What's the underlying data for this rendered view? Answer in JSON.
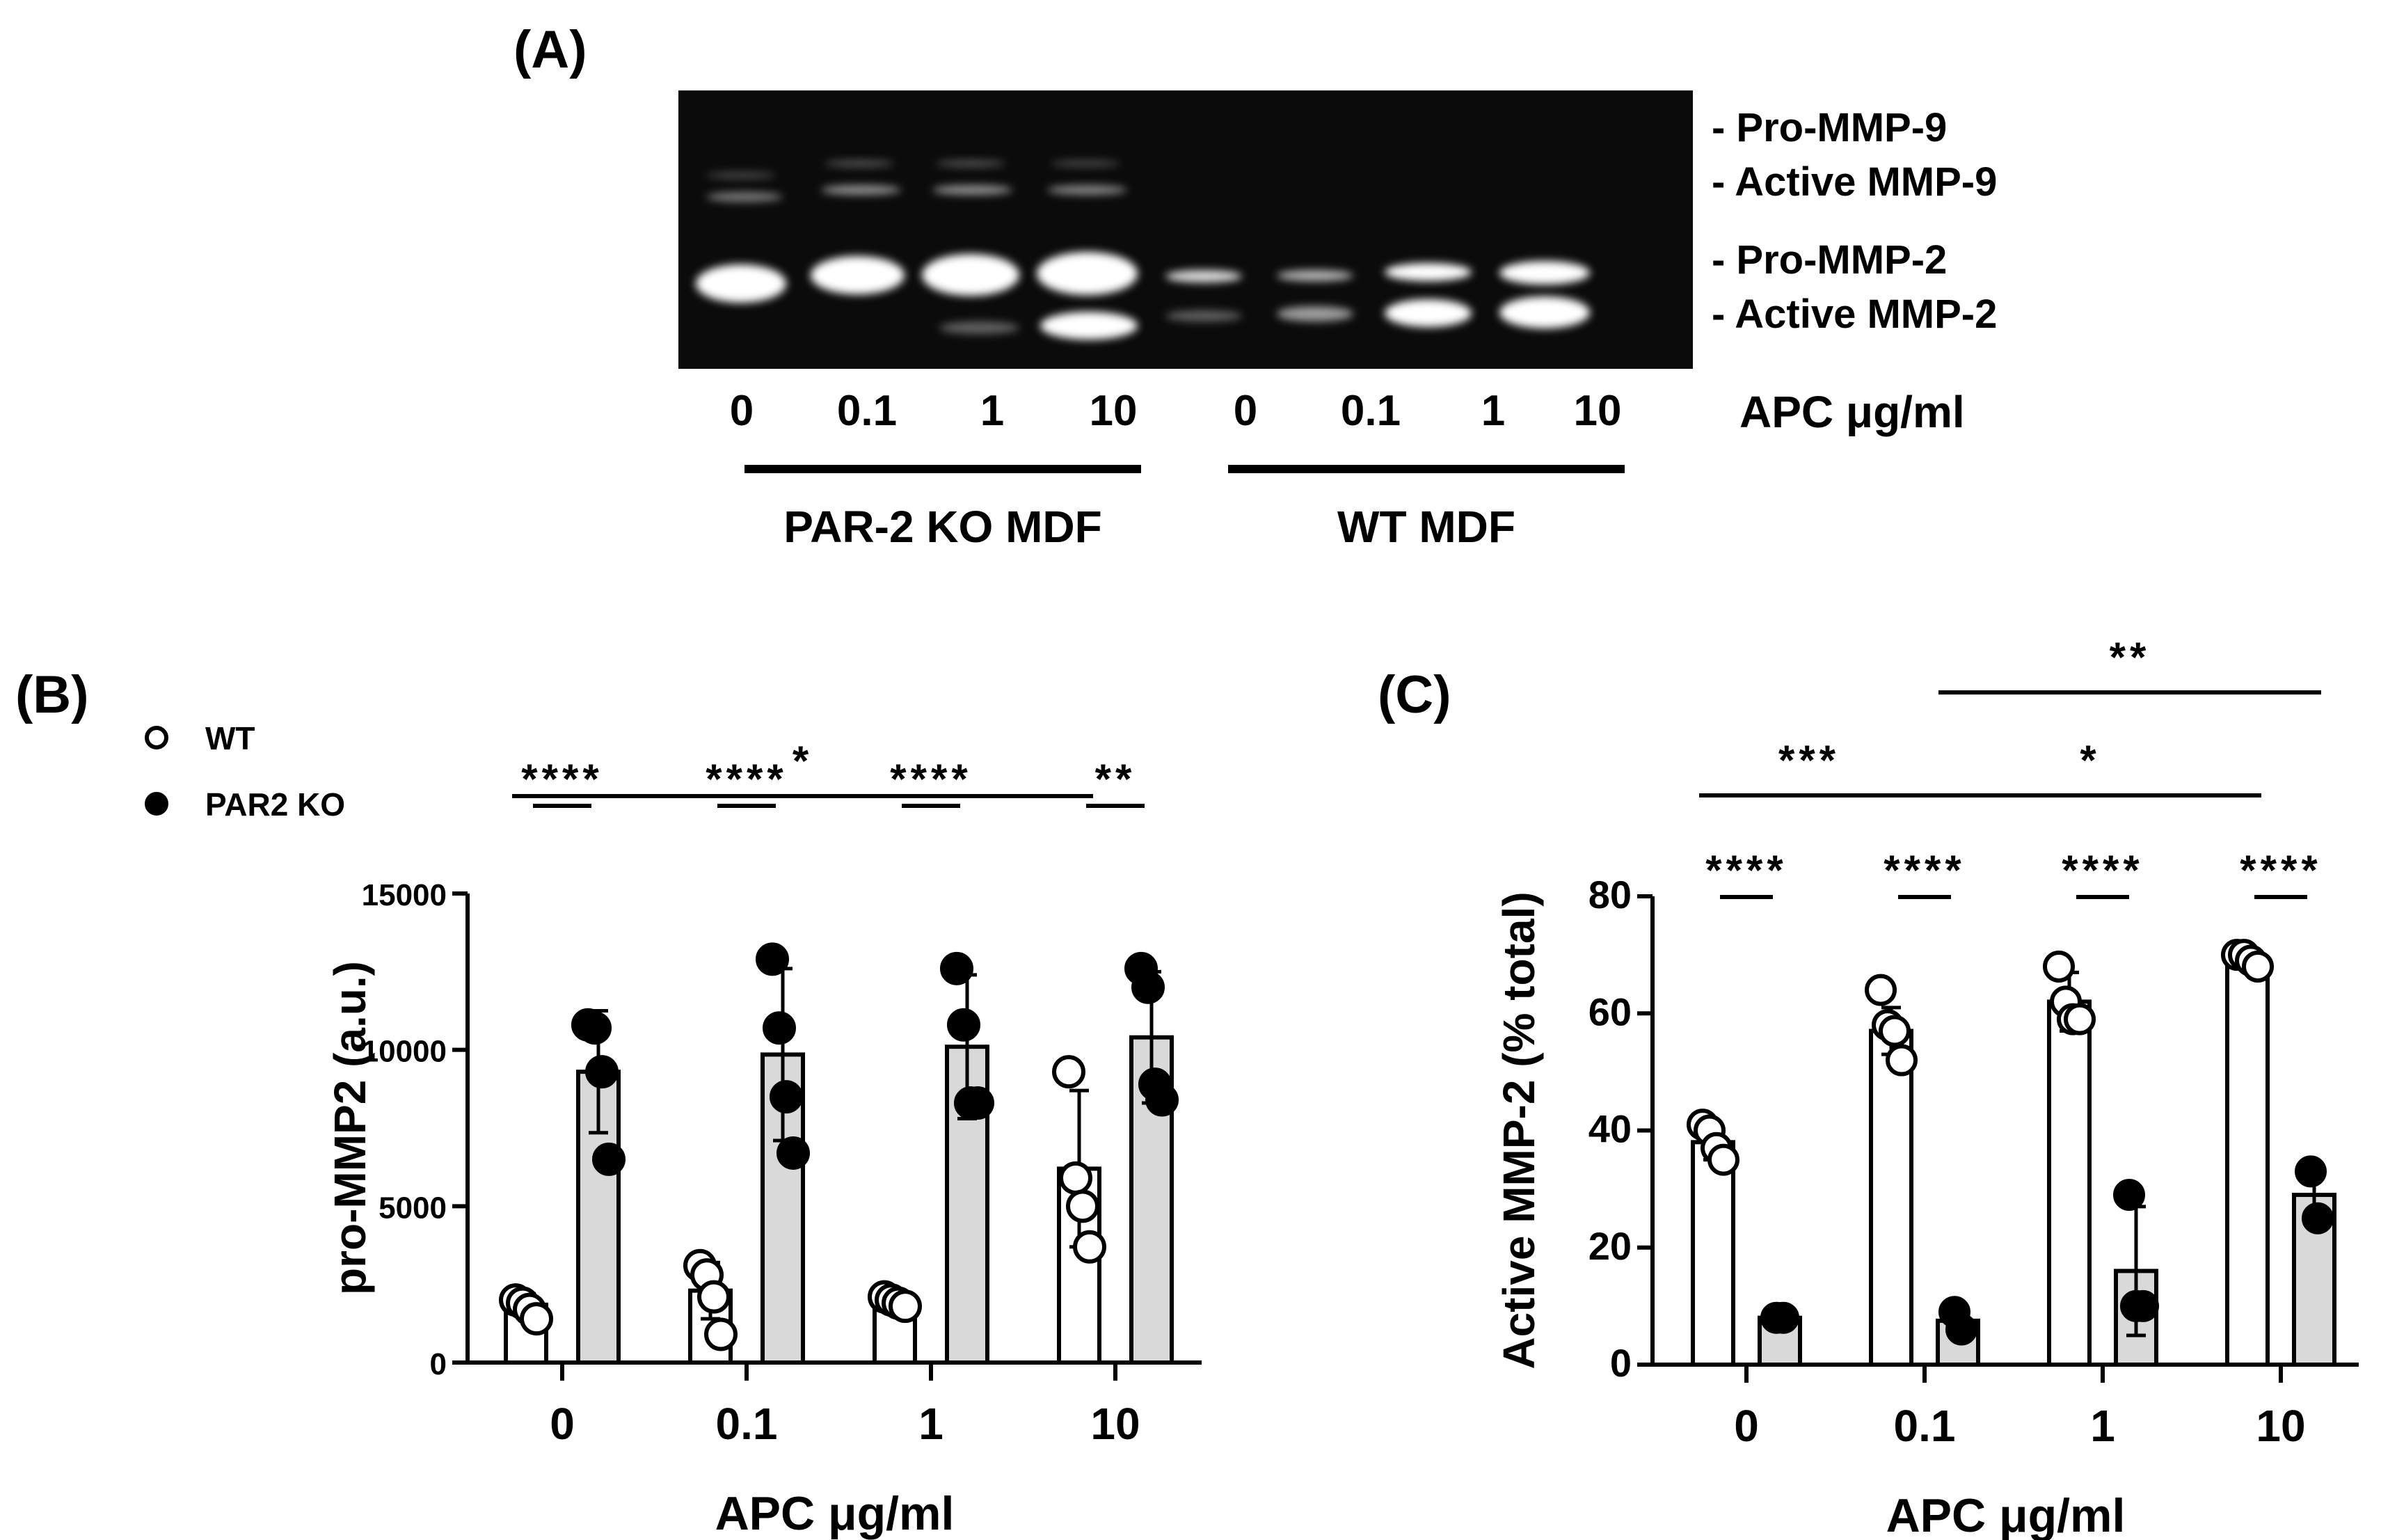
{
  "panels": {
    "a_label": "(A)",
    "b_label": "(B)",
    "c_label": "(C)"
  },
  "gel": {
    "band_labels": [
      "- Pro-MMP-9",
      "- Active  MMP-9",
      "- Pro-MMP-2",
      "- Active  MMP-2"
    ],
    "lane_labels": [
      "0",
      "0.1",
      "1",
      "10",
      "0",
      "0.1",
      "1",
      "10"
    ],
    "dose_label": "APC μg/ml",
    "groups": [
      {
        "label": "PAR-2 KO MDF",
        "lanes": [
          0,
          1,
          2,
          3
        ]
      },
      {
        "label": "WT MDF",
        "lanes": [
          4,
          5,
          6,
          7
        ]
      }
    ]
  },
  "chart_data": [
    {
      "id": "B",
      "type": "bar",
      "title": "",
      "xlabel": "APC μg/ml",
      "ylabel": "pro-MMP2 (a.u.)",
      "categories": [
        "0",
        "0.1",
        "1",
        "10"
      ],
      "ylim": [
        0,
        15000
      ],
      "yticks": [
        0,
        5000,
        10000,
        15000
      ],
      "legend": [
        {
          "name": "WT",
          "marker": "open-circle"
        },
        {
          "name": "PAR2 KO",
          "marker": "filled-circle"
        }
      ],
      "legend_position": "top-left",
      "grid": false,
      "series": [
        {
          "name": "WT",
          "fill": "#ffffff",
          "values": [
            1850,
            2300,
            1950,
            6200
          ],
          "sd": [
            350,
            900,
            250,
            2500
          ],
          "points": [
            [
              2000,
              1900,
              1700,
              1400
            ],
            [
              3100,
              2800,
              2100,
              900
            ],
            [
              2100,
              2000,
              1900,
              1800
            ],
            [
              9300,
              5900,
              5000,
              3700
            ]
          ]
        },
        {
          "name": "PAR2 KO",
          "fill": "#d9d9d9",
          "values": [
            9300,
            9850,
            10100,
            10400
          ],
          "sd": [
            1950,
            2750,
            2300,
            2100
          ],
          "points": [
            [
              10800,
              10700,
              9300,
              6500
            ],
            [
              12900,
              10700,
              8500,
              6700
            ],
            [
              12600,
              10800,
              8300,
              8300
            ],
            [
              12600,
              12000,
              8900,
              8400
            ]
          ]
        }
      ],
      "annotations": [
        {
          "text": "****",
          "from": 0,
          "to": 0,
          "type": "pair"
        },
        {
          "text": "****",
          "from": 1,
          "to": 1,
          "type": "pair"
        },
        {
          "text": "****",
          "from": 2,
          "to": 2,
          "type": "pair"
        },
        {
          "text": "**",
          "from": 3,
          "to": 3,
          "type": "pair"
        },
        {
          "text": "*",
          "from": 0,
          "to": 3,
          "type": "bracket-wt"
        }
      ]
    },
    {
      "id": "C",
      "type": "bar",
      "title": "",
      "xlabel": "APC μg/ml",
      "ylabel": "Active MMP-2 (% total)",
      "categories": [
        "0",
        "0.1",
        "1",
        "10"
      ],
      "ylim": [
        0,
        80
      ],
      "yticks": [
        0,
        20,
        40,
        60,
        80
      ],
      "grid": false,
      "series": [
        {
          "name": "WT",
          "fill": "#ffffff",
          "values": [
            38,
            57,
            62,
            69
          ],
          "sd": [
            3,
            4,
            5,
            1
          ],
          "points": [
            [
              41,
              40,
              37,
              35
            ],
            [
              64,
              58,
              57,
              52
            ],
            [
              68,
              62,
              59,
              59
            ],
            [
              70,
              70,
              69,
              68
            ]
          ]
        },
        {
          "name": "PAR2 KO",
          "fill": "#d9d9d9",
          "values": [
            8,
            7.5,
            16,
            29
          ],
          "sd": [
            0.5,
            2,
            11,
            5
          ],
          "points": [
            [
              8,
              8
            ],
            [
              9,
              6
            ],
            [
              29,
              10,
              10
            ],
            [
              33,
              25
            ]
          ]
        }
      ],
      "annotations": [
        {
          "text": "****",
          "from": 0,
          "to": 0,
          "type": "pair"
        },
        {
          "text": "****",
          "from": 1,
          "to": 1,
          "type": "pair"
        },
        {
          "text": "****",
          "from": 2,
          "to": 2,
          "type": "pair"
        },
        {
          "text": "****",
          "from": 3,
          "to": 3,
          "type": "pair"
        },
        {
          "text": "***",
          "from": 0,
          "to": 1,
          "type": "bracket-wt"
        },
        {
          "text": "*",
          "from": 1,
          "to": 3,
          "type": "bracket-ko"
        },
        {
          "text": "**",
          "from": 1,
          "to": 3,
          "type": "bracket-ko-high"
        }
      ]
    }
  ]
}
